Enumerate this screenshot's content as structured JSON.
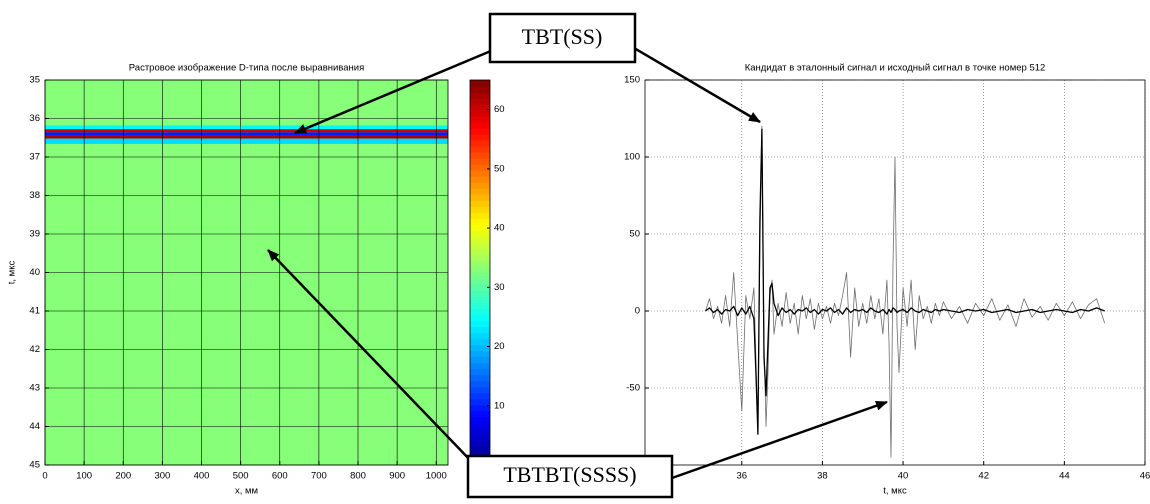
{
  "chart_data": [
    {
      "type": "heatmap",
      "title": "Растровое изображение D-типа после выравнивания",
      "xlabel": "x, мм",
      "ylabel": "t, мкс",
      "xlim": [
        0,
        1030
      ],
      "xticks": [
        0,
        100,
        200,
        300,
        400,
        500,
        600,
        700,
        800,
        900,
        1000
      ],
      "ylim": [
        35,
        45
      ],
      "y_inverted": true,
      "yticks": [
        35,
        36,
        37,
        38,
        39,
        40,
        41,
        42,
        43,
        44,
        45
      ],
      "grid": true,
      "colormap": "jet",
      "base_value": 33,
      "bands": [
        {
          "t": [
            36.18,
            36.28
          ],
          "value": 24
        },
        {
          "t": [
            36.28,
            36.36
          ],
          "value": 60
        },
        {
          "t": [
            36.36,
            36.44
          ],
          "value": 10
        },
        {
          "t": [
            36.44,
            36.52
          ],
          "value": 62
        },
        {
          "t": [
            36.52,
            36.66
          ],
          "value": 22
        }
      ],
      "clim": [
        0,
        65
      ],
      "cticks": [
        10,
        20,
        30,
        40,
        50,
        60
      ]
    },
    {
      "type": "line",
      "title": "Кандидат в эталонный сигнал и исходный сигнал в точке номер 512",
      "xlabel": "t, мкс",
      "xlim": [
        33.6,
        46
      ],
      "xticks": [
        36,
        38,
        40,
        42,
        44,
        46
      ],
      "ylim": [
        -100,
        150
      ],
      "yticks": [
        -50,
        0,
        50,
        100,
        150
      ],
      "grid": true,
      "x": [
        35.1,
        35.2,
        35.3,
        35.4,
        35.5,
        35.6,
        35.7,
        35.8,
        35.9,
        36.0,
        36.1,
        36.2,
        36.3,
        36.35,
        36.4,
        36.45,
        36.5,
        36.55,
        36.6,
        36.65,
        36.7,
        36.75,
        36.8,
        36.9,
        37.0,
        37.1,
        37.2,
        37.3,
        37.4,
        37.5,
        37.6,
        37.7,
        37.8,
        37.9,
        38.0,
        38.1,
        38.2,
        38.3,
        38.4,
        38.5,
        38.6,
        38.7,
        38.8,
        38.9,
        39.0,
        39.1,
        39.2,
        39.3,
        39.4,
        39.5,
        39.6,
        39.65,
        39.7,
        39.75,
        39.8,
        39.85,
        39.9,
        40.0,
        40.1,
        40.2,
        40.3,
        40.4,
        40.5,
        40.6,
        40.7,
        40.8,
        40.9,
        41.0,
        41.2,
        41.4,
        41.6,
        41.8,
        42.0,
        42.2,
        42.4,
        42.6,
        42.8,
        43.0,
        43.2,
        43.4,
        43.6,
        43.8,
        44.0,
        44.2,
        44.4,
        44.6,
        44.8,
        45.0
      ],
      "series": [
        {
          "color": "#6e6e6e",
          "width": 0.8,
          "values": [
            0,
            8,
            -5,
            3,
            -8,
            10,
            -10,
            25,
            -20,
            -65,
            10,
            -5,
            15,
            -30,
            -80,
            40,
            120,
            -20,
            -75,
            -40,
            10,
            20,
            -15,
            5,
            -10,
            12,
            -8,
            5,
            -15,
            10,
            -5,
            8,
            -12,
            5,
            -5,
            3,
            -8,
            5,
            -3,
            10,
            25,
            -30,
            15,
            -10,
            5,
            -8,
            10,
            -5,
            8,
            -15,
            20,
            -20,
            -95,
            30,
            100,
            -10,
            -40,
            15,
            -10,
            20,
            -25,
            10,
            -5,
            3,
            -8,
            5,
            -3,
            6,
            -5,
            3,
            -8,
            5,
            -3,
            8,
            -6,
            4,
            -10,
            8,
            -4,
            3,
            -6,
            5,
            -3,
            6,
            -5,
            4,
            8,
            -8
          ]
        },
        {
          "color": "#000000",
          "width": 1.3,
          "values": [
            0,
            2,
            -1,
            1,
            -2,
            1,
            0,
            3,
            -3,
            2,
            -2,
            3,
            -5,
            -40,
            -80,
            60,
            118,
            -30,
            -55,
            -20,
            15,
            18,
            5,
            -3,
            2,
            -1,
            1,
            -2,
            1,
            0,
            2,
            -1,
            1,
            -2,
            1,
            0,
            2,
            -1,
            1,
            -2,
            2,
            -1,
            1,
            0,
            1,
            -1,
            2,
            0,
            -1,
            1,
            -2,
            1,
            -1,
            2,
            1,
            -1,
            0,
            1,
            -1,
            2,
            0,
            -1,
            1,
            0,
            -1,
            1,
            0,
            1,
            0,
            -1,
            1,
            0,
            1,
            -1,
            0,
            1,
            -1,
            0,
            1,
            -1,
            0,
            1,
            0,
            -1,
            1,
            0,
            2,
            0
          ]
        }
      ]
    }
  ],
  "annotations": [
    {
      "text": "TBT(SS)"
    },
    {
      "text": "TBTBT(SSSS)"
    }
  ]
}
